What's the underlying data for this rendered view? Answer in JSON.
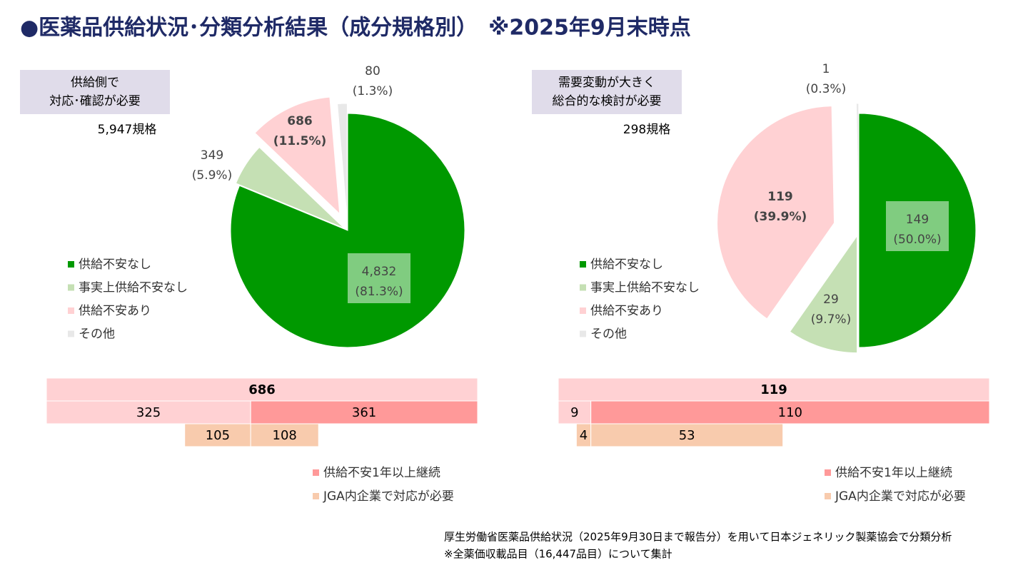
{
  "title": "●医薬品供給状況･分類分析結果（成分規格別）　※2025年9月末時点",
  "footnotes": [
    "厚生労働省医薬品供給状況（2025年9月30日まで報告分）を用いて日本ジェネリック製薬協会で分類分析",
    "※全薬価収載品目（16,447品目）について集計"
  ],
  "chart_data": [
    {
      "type": "pie",
      "note": [
        "供給側で",
        "対応･確認が必要"
      ],
      "total_label": "5,947規格",
      "categories": [
        "供給不安なし",
        "事実上供給不安なし",
        "供給不安あり",
        "その他"
      ],
      "colors": [
        "#009900",
        "#c5e0b4",
        "#ffd1d3",
        "#e8e8e8"
      ],
      "values": [
        4832,
        349,
        686,
        80
      ],
      "value_labels": [
        "4,832",
        "349",
        "686",
        "80"
      ],
      "percents": [
        81.3,
        5.9,
        11.5,
        1.3
      ],
      "percent_labels": [
        "(81.3%)",
        "(5.9%)",
        "(11.5%)",
        "(1.3%)"
      ]
    },
    {
      "type": "pie",
      "note": [
        "需要変動が大きく",
        "総合的な検討が必要"
      ],
      "total_label": "298規格",
      "categories": [
        "供給不安なし",
        "事実上供給不安なし",
        "供給不安あり",
        "その他"
      ],
      "colors": [
        "#009900",
        "#c5e0b4",
        "#ffd1d3",
        "#e8e8e8"
      ],
      "values": [
        149,
        29,
        119,
        1
      ],
      "percents": [
        50.0,
        9.7,
        39.9,
        0.3
      ],
      "percent_labels": [
        "(50.0%)",
        "(9.7%)",
        "(39.9%)",
        "(0.3%)"
      ]
    },
    {
      "type": "bar",
      "rows": [
        {
          "values": [
            686
          ],
          "colors": [
            "#ffd1d3"
          ]
        },
        {
          "values": [
            325,
            361
          ],
          "colors": [
            "#ffd1d3",
            "#ff9999"
          ]
        },
        {
          "values": [
            105,
            108
          ],
          "colors": [
            "#f8cbad",
            "#f8cbad"
          ]
        }
      ],
      "legend": [
        {
          "name": "供給不安1年以上継続",
          "color": "#ff9999"
        },
        {
          "name": "JGA内企業で対応が必要",
          "color": "#f8cbad"
        }
      ]
    },
    {
      "type": "bar",
      "rows": [
        {
          "values": [
            119
          ],
          "colors": [
            "#ffd1d3"
          ]
        },
        {
          "values": [
            9,
            110
          ],
          "colors": [
            "#ffd1d3",
            "#ff9999"
          ]
        },
        {
          "values": [
            4,
            53
          ],
          "colors": [
            "#f8cbad",
            "#f8cbad"
          ]
        }
      ],
      "legend": [
        {
          "name": "供給不安1年以上継続",
          "color": "#ff9999"
        },
        {
          "name": "JGA内企業で対応が必要",
          "color": "#f8cbad"
        }
      ]
    }
  ]
}
